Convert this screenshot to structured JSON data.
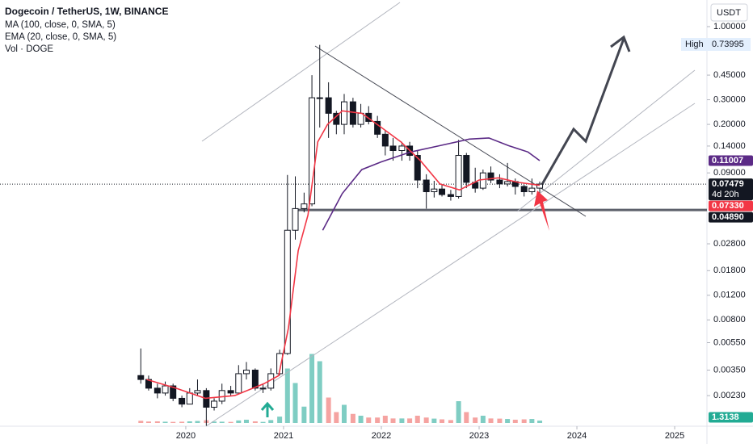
{
  "chart_data": {
    "type": "candlestick",
    "title": "Dogecoin / TetherUS, 1W, BINANCE",
    "volume_name": "Vol · DOGE",
    "currency": "USDT",
    "high_label": "High",
    "countdown": "4d 20h",
    "log_scale": true,
    "xlim": [
      2018.1,
      2025.33
    ],
    "xticks": [
      2020,
      2021,
      2022,
      2023,
      2024,
      2025
    ],
    "ylim": [
      0.00139,
      1.55
    ],
    "yticks": [
      {
        "value": 1,
        "label": "1.00000"
      },
      {
        "value": 0.45,
        "label": "0.45000"
      },
      {
        "value": 0.3,
        "label": "0.30000"
      },
      {
        "value": 0.2,
        "label": "0.20000"
      },
      {
        "value": 0.14,
        "label": "0.14000"
      },
      {
        "value": 0.09,
        "label": "0.09000"
      },
      {
        "value": 0.028,
        "label": "0.02800"
      },
      {
        "value": 0.018,
        "label": "0.01800"
      },
      {
        "value": 0.012,
        "label": "0.01200"
      },
      {
        "value": 0.008,
        "label": "0.00800"
      },
      {
        "value": 0.0055,
        "label": "0.00550"
      },
      {
        "value": 0.0035,
        "label": "0.00350"
      },
      {
        "value": 0.0023,
        "label": "0.00230"
      }
    ],
    "hline": {
      "value": 0.0489,
      "label": "0.04890"
    },
    "up_color": "#ffffff",
    "down_color": "#131722",
    "volume_up_color": "#7fcdc3",
    "volume_down_color": "#f5a3a1",
    "vlim": [
      0,
      40
    ],
    "x": [
      2019.54,
      2019.62,
      2019.71,
      2019.79,
      2019.87,
      2019.96,
      2020.04,
      2020.12,
      2020.21,
      2020.29,
      2020.37,
      2020.46,
      2020.54,
      2020.62,
      2020.71,
      2020.79,
      2020.87,
      2020.96,
      2021.04,
      2021.12,
      2021.21,
      2021.29,
      2021.37,
      2021.46,
      2021.54,
      2021.62,
      2021.71,
      2021.79,
      2021.87,
      2021.96,
      2022.04,
      2022.12,
      2022.21,
      2022.29,
      2022.37,
      2022.46,
      2022.54,
      2022.62,
      2022.71,
      2022.79,
      2022.87,
      2022.96,
      2023.04,
      2023.12,
      2023.21,
      2023.29,
      2023.37,
      2023.46,
      2023.54,
      2023.62
    ],
    "open": [
      0.0032,
      0.003,
      0.0026,
      0.0024,
      0.0027,
      0.0022,
      0.002,
      0.0024,
      0.0025,
      0.0019,
      0.0021,
      0.0025,
      0.0024,
      0.0033,
      0.0035,
      0.0026,
      0.0026,
      0.0033,
      0.0046,
      0.035,
      0.05,
      0.054,
      0.31,
      0.31,
      0.24,
      0.2,
      0.29,
      0.2,
      0.24,
      0.21,
      0.17,
      0.14,
      0.13,
      0.14,
      0.12,
      0.08,
      0.066,
      0.069,
      0.063,
      0.061,
      0.12,
      0.077,
      0.07,
      0.09,
      0.08,
      0.075,
      0.078,
      0.072,
      0.066,
      0.07
    ],
    "high": [
      0.005,
      0.0032,
      0.0028,
      0.0029,
      0.0028,
      0.0023,
      0.0026,
      0.003,
      0.0026,
      0.0022,
      0.0028,
      0.0027,
      0.0038,
      0.004,
      0.0036,
      0.0028,
      0.0036,
      0.0049,
      0.087,
      0.085,
      0.065,
      0.45,
      0.73995,
      0.4,
      0.25,
      0.33,
      0.31,
      0.28,
      0.27,
      0.23,
      0.18,
      0.16,
      0.15,
      0.15,
      0.13,
      0.088,
      0.079,
      0.074,
      0.068,
      0.155,
      0.125,
      0.098,
      0.095,
      0.1,
      0.088,
      0.106,
      0.082,
      0.074,
      0.082,
      0.078
    ],
    "low": [
      0.0028,
      0.0025,
      0.0022,
      0.0023,
      0.0021,
      0.0019,
      0.002,
      0.0023,
      0.0014,
      0.0018,
      0.002,
      0.0023,
      0.0024,
      0.003,
      0.0025,
      0.0024,
      0.0025,
      0.0032,
      0.0045,
      0.03,
      0.047,
      0.052,
      0.19,
      0.16,
      0.17,
      0.17,
      0.19,
      0.19,
      0.2,
      0.16,
      0.12,
      0.11,
      0.11,
      0.11,
      0.07,
      0.05,
      0.06,
      0.061,
      0.057,
      0.059,
      0.07,
      0.065,
      0.068,
      0.076,
      0.07,
      0.072,
      0.063,
      0.061,
      0.063,
      0.065
    ],
    "close": [
      0.003,
      0.0026,
      0.0024,
      0.0027,
      0.0022,
      0.002,
      0.0024,
      0.0025,
      0.0019,
      0.0021,
      0.0025,
      0.0024,
      0.0033,
      0.0035,
      0.0026,
      0.0026,
      0.0033,
      0.0046,
      0.035,
      0.05,
      0.054,
      0.31,
      0.31,
      0.24,
      0.2,
      0.29,
      0.2,
      0.24,
      0.21,
      0.17,
      0.14,
      0.13,
      0.14,
      0.12,
      0.08,
      0.066,
      0.069,
      0.063,
      0.061,
      0.12,
      0.077,
      0.07,
      0.09,
      0.08,
      0.075,
      0.078,
      0.072,
      0.066,
      0.07,
      0.07479
    ],
    "volume": [
      1.2,
      0.8,
      0.9,
      0.7,
      0.6,
      0.7,
      0.9,
      1.1,
      1.5,
      0.8,
      0.7,
      0.6,
      1.4,
      1.8,
      0.9,
      0.6,
      1.6,
      3.5,
      30,
      22,
      9,
      38,
      34,
      14,
      6,
      10,
      5,
      4,
      3,
      3,
      4,
      2.5,
      2.5,
      2.5,
      4,
      3,
      2.4,
      2,
      1.6,
      12,
      6,
      3,
      4,
      2.5,
      2.4,
      2.2,
      1.8,
      2,
      2.2,
      1.3138
    ],
    "series": [
      {
        "name": "MA (100, close, 0, SMA, 5)",
        "color": "#5b2a86",
        "x": [
          2021.4,
          2021.6,
          2021.8,
          2022.0,
          2022.3,
          2022.6,
          2022.9,
          2023.1,
          2023.3,
          2023.5,
          2023.62
        ],
        "values": [
          0.035,
          0.064,
          0.095,
          0.108,
          0.127,
          0.141,
          0.157,
          0.16,
          0.141,
          0.127,
          0.11007
        ]
      },
      {
        "name": "EMA (20, close, 0, SMA, 5)",
        "color": "#f23645",
        "x": [
          2019.6,
          2019.9,
          2020.2,
          2020.5,
          2020.8,
          2020.95,
          2021.05,
          2021.15,
          2021.25,
          2021.35,
          2021.45,
          2021.6,
          2021.8,
          2022.0,
          2022.2,
          2022.4,
          2022.6,
          2022.8,
          2023.0,
          2023.2,
          2023.4,
          2023.62
        ],
        "values": [
          0.003,
          0.0026,
          0.0022,
          0.0023,
          0.0028,
          0.0032,
          0.007,
          0.025,
          0.045,
          0.15,
          0.2,
          0.25,
          0.24,
          0.19,
          0.15,
          0.11,
          0.075,
          0.068,
          0.08,
          0.083,
          0.077,
          0.0733
        ],
        "last_value_label": "0.07330"
      }
    ]
  }
}
